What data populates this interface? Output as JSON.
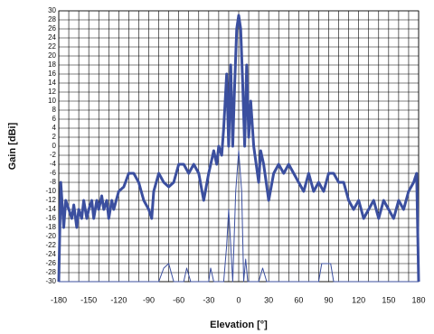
{
  "chart_data": {
    "type": "line",
    "xlabel": "Elevation [°]",
    "ylabel": "Gain [dBi]",
    "xlim": [
      -180,
      180
    ],
    "ylim": [
      -30,
      30
    ],
    "xticks": [
      -180,
      -150,
      -120,
      -90,
      -60,
      -30,
      0,
      30,
      60,
      90,
      120,
      150,
      180
    ],
    "x_minor_ticks": [
      -170,
      -160,
      -140,
      -130,
      -110,
      -100,
      -80,
      -70,
      -50,
      -40,
      -20,
      -10,
      10,
      20,
      40,
      50,
      70,
      80,
      100,
      110,
      130,
      140,
      160,
      170
    ],
    "yticks": [
      -30,
      -28,
      -26,
      -24,
      -22,
      -20,
      -18,
      -16,
      -14,
      -12,
      -10,
      -8,
      -6,
      -4,
      -2,
      0,
      2,
      4,
      6,
      8,
      10,
      12,
      14,
      16,
      18,
      20,
      22,
      24,
      26,
      28,
      30
    ],
    "grid": true,
    "series": [
      {
        "color": "#3b4f9f",
        "width": 3,
        "x": [
          -180,
          -178,
          -175,
          -173,
          -170,
          -167,
          -165,
          -162,
          -160,
          -157,
          -155,
          -152,
          -150,
          -147,
          -145,
          -142,
          -140,
          -137,
          -135,
          -132,
          -130,
          -127,
          -125,
          -120,
          -115,
          -110,
          -105,
          -100,
          -95,
          -90,
          -87,
          -85,
          -80,
          -75,
          -70,
          -65,
          -60,
          -55,
          -50,
          -45,
          -40,
          -35,
          -30,
          -25,
          -22,
          -20,
          -17,
          -15,
          -12,
          -10,
          -8,
          -6,
          -4,
          -2,
          0,
          2,
          4,
          6,
          8,
          10,
          12,
          15,
          20,
          22,
          25,
          30,
          35,
          40,
          45,
          50,
          55,
          60,
          65,
          70,
          75,
          80,
          85,
          90,
          95,
          100,
          105,
          110,
          115,
          120,
          125,
          130,
          135,
          140,
          145,
          150,
          155,
          160,
          165,
          170,
          175,
          178,
          180
        ],
        "values": [
          -30,
          -8,
          -18,
          -12,
          -14,
          -16,
          -13,
          -18,
          -14,
          -16,
          -12,
          -16,
          -14,
          -12,
          -16,
          -12,
          -14,
          -11,
          -14,
          -12,
          -16,
          -12,
          -14,
          -10,
          -9,
          -6,
          -6,
          -8,
          -12,
          -14,
          -16,
          -10,
          -6,
          -8,
          -9,
          -8,
          -4,
          -4,
          -6,
          -4,
          -6,
          -12,
          -6,
          -1,
          -4,
          0,
          -2,
          4,
          16,
          0,
          18,
          0,
          14,
          26,
          29,
          26,
          14,
          0,
          18,
          2,
          10,
          0,
          -8,
          -1,
          -4,
          -12,
          -6,
          -4,
          -6,
          -4,
          -6,
          -8,
          -10,
          -6,
          -10,
          -8,
          -10,
          -6,
          -6,
          -8,
          -8,
          -12,
          -14,
          -12,
          -16,
          -14,
          -12,
          -16,
          -12,
          -14,
          -16,
          -12,
          -14,
          -10,
          -8,
          -6,
          -30
        ]
      },
      {
        "color": "#3b4f9f",
        "width": 1,
        "x": [
          -180,
          -80,
          -75,
          -70,
          -65,
          -55,
          -52,
          -48,
          -30,
          -28,
          -25,
          -15,
          -12,
          -10,
          -8,
          -6,
          -3,
          0,
          3,
          5,
          7,
          9,
          20,
          24,
          28,
          80,
          83,
          92,
          95,
          180
        ],
        "values": [
          -30,
          -30,
          -27,
          -26,
          -30,
          -30,
          -27,
          -30,
          -30,
          -27,
          -30,
          -30,
          -22,
          -14,
          -22,
          -30,
          -10,
          -1,
          -10,
          -30,
          -25,
          -30,
          -30,
          -27,
          -30,
          -30,
          -26,
          -26,
          -30,
          -30
        ]
      }
    ]
  }
}
